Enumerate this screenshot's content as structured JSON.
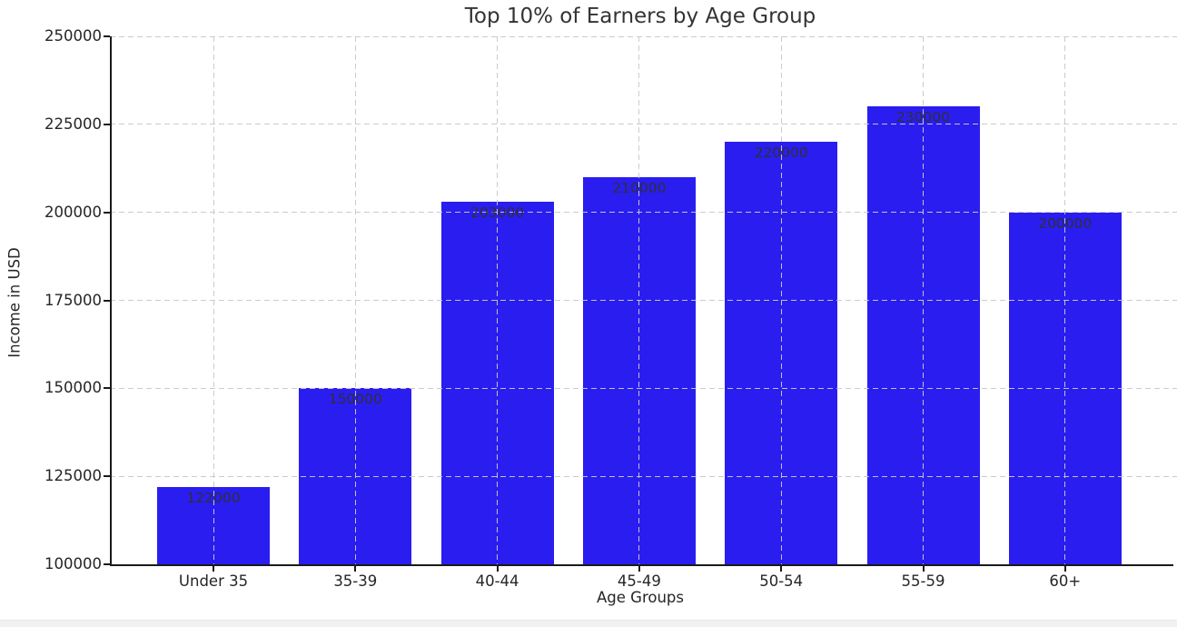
{
  "chart_data": {
    "type": "bar",
    "title": "Top 10% of Earners by Age Group",
    "xlabel": "Age Groups",
    "ylabel": "Income in USD",
    "categories": [
      "Under 35",
      "35-39",
      "40-44",
      "45-49",
      "50-54",
      "55-59",
      "60+"
    ],
    "values": [
      122000,
      150000,
      203000,
      210000,
      220000,
      230000,
      200000
    ],
    "bar_value_labels": [
      "122000",
      "150000",
      "203000",
      "210000",
      "220000",
      "230000",
      "200000"
    ],
    "ylim": [
      100000,
      250000
    ],
    "yticks": [
      100000,
      125000,
      150000,
      175000,
      200000,
      225000,
      250000
    ],
    "ytick_labels": [
      "100000",
      "125000",
      "150000",
      "175000",
      "200000",
      "225000",
      "250000"
    ],
    "grid": "dashed",
    "legend": "none",
    "bar_color": "#2a1df0",
    "value_label_color": "#303030",
    "axis_text_color": "#262626",
    "title_color": "#333333",
    "grid_color": "#c9c9c9",
    "spine_color": "#1a1a1a",
    "bottom_band_color": "#f1f1f1"
  }
}
